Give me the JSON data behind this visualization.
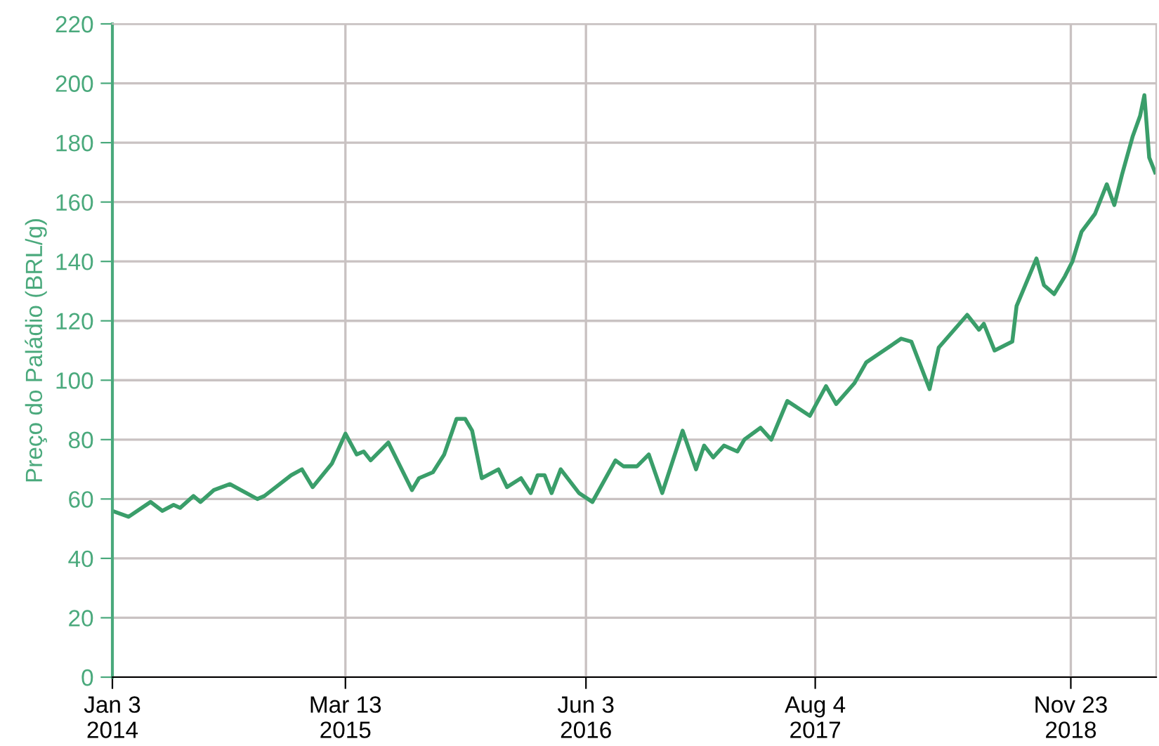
{
  "chart_data": {
    "type": "line",
    "ylabel": "Preço do Paládio (BRL/g)",
    "x": [
      "2014-01-03",
      "2014-02-02",
      "2014-03-15",
      "2014-04-06",
      "2014-04-27",
      "2014-05-09",
      "2014-06-03",
      "2014-06-16",
      "2014-07-11",
      "2014-08-10",
      "2014-09-30",
      "2014-10-13",
      "2014-12-02",
      "2014-12-22",
      "2015-01-11",
      "2015-02-16",
      "2015-03-13",
      "2015-04-03",
      "2015-04-16",
      "2015-04-29",
      "2015-06-01",
      "2015-07-15",
      "2015-07-28",
      "2015-08-23",
      "2015-09-13",
      "2015-10-06",
      "2015-10-22",
      "2015-11-04",
      "2015-11-22",
      "2015-12-23",
      "2016-01-08",
      "2016-02-03",
      "2016-02-21",
      "2016-03-05",
      "2016-03-18",
      "2016-03-31",
      "2016-04-17",
      "2016-05-21",
      "2016-06-15",
      "2016-07-28",
      "2016-08-12",
      "2016-09-06",
      "2016-09-28",
      "2016-10-23",
      "2016-11-30",
      "2016-12-25",
      "2017-01-09",
      "2017-01-26",
      "2017-02-15",
      "2017-03-12",
      "2017-03-25",
      "2017-04-24",
      "2017-05-14",
      "2017-06-13",
      "2017-07-25",
      "2017-08-24",
      "2017-09-12",
      "2017-10-16",
      "2017-11-07",
      "2018-01-11",
      "2018-01-30",
      "2018-03-05",
      "2018-03-22",
      "2018-05-14",
      "2018-06-05",
      "2018-06-14",
      "2018-07-04",
      "2018-08-06",
      "2018-08-14",
      "2018-09-20",
      "2018-10-04",
      "2018-10-23",
      "2018-11-12",
      "2018-11-26",
      "2018-12-13",
      "2019-01-07",
      "2019-01-29",
      "2019-02-12",
      "2019-02-26",
      "2019-03-18",
      "2019-04-01",
      "2019-04-09",
      "2019-04-18",
      "2019-04-29"
    ],
    "series": [
      {
        "color": "#3a9e6a",
        "values": [
          56,
          54,
          59,
          56,
          58,
          57,
          61,
          59,
          63,
          65,
          60,
          61,
          68,
          70,
          64,
          72,
          82,
          75,
          76,
          73,
          79,
          63,
          67,
          69,
          75,
          87,
          87,
          83,
          67,
          70,
          64,
          67,
          62,
          68,
          68,
          62,
          70,
          62,
          59,
          73,
          71,
          71,
          75,
          62,
          83,
          70,
          78,
          74,
          78,
          76,
          80,
          84,
          80,
          93,
          88,
          98,
          92,
          99,
          106,
          114,
          113,
          97,
          111,
          122,
          117,
          119,
          110,
          113,
          125,
          141,
          132,
          129,
          135,
          140,
          150,
          156,
          166,
          159,
          169,
          182,
          189,
          196,
          175,
          170
        ]
      }
    ],
    "xlim": [
      "2014-01-03",
      "2019-05-01"
    ],
    "xticks": [
      {
        "value": "2014-01-03",
        "label": "Jan 3\n2014"
      },
      {
        "value": "2015-03-13",
        "label": "Mar 13\n2015"
      },
      {
        "value": "2016-06-03",
        "label": "Jun 3\n2016"
      },
      {
        "value": "2017-08-04",
        "label": "Aug 4\n2017"
      },
      {
        "value": "2018-11-23",
        "label": "Nov 23\n2018"
      }
    ],
    "ylim": [
      0,
      220
    ],
    "yticks": [
      0,
      20,
      40,
      60,
      80,
      100,
      120,
      140,
      160,
      180,
      200,
      220
    ],
    "grid": true,
    "marker": "none",
    "line_style": "solid"
  }
}
